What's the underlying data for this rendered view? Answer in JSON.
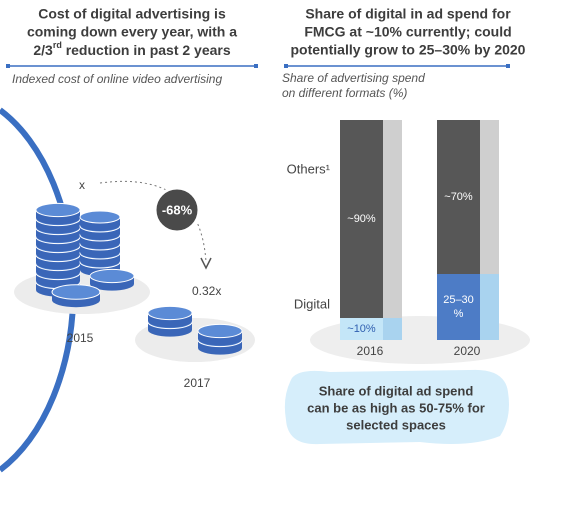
{
  "left": {
    "title_lines": [
      "Cost of digital advertising is",
      "coming down every year, with a"
    ],
    "title_last": [
      "2/3",
      "rd",
      " reduction in past 2 years"
    ],
    "subtitle": "Indexed cost of online video advertising",
    "start_label": "x",
    "change_label": "-68%",
    "end_label": "0.32x",
    "start_year": "2015",
    "end_year": "2017"
  },
  "chart_data": {
    "type": "stacked-bar",
    "title": [
      "Share of digital in ad spend for",
      "FMCG at ~10% currently; could",
      "potentially grow to 25–30% by 2020"
    ],
    "subtitle": [
      "Share of advertising spend",
      "on different formats (%)"
    ],
    "categories": [
      "2016",
      "2020"
    ],
    "series": [
      {
        "name": "Digital",
        "colors": [
          "#c4e6f8",
          "#4d7cc6"
        ],
        "values": [
          10,
          30
        ],
        "value_labels": [
          "~10%",
          "25–30 %"
        ]
      },
      {
        "name": "Others¹",
        "colors": [
          "#575757",
          "#575757"
        ],
        "values": [
          90,
          70
        ],
        "value_labels": [
          "~90%",
          "~70%"
        ]
      }
    ],
    "ylim": [
      0,
      100
    ],
    "callout": [
      "Share of digital ad spend",
      "can be as high as 50-75% for",
      "selected spaces"
    ]
  }
}
